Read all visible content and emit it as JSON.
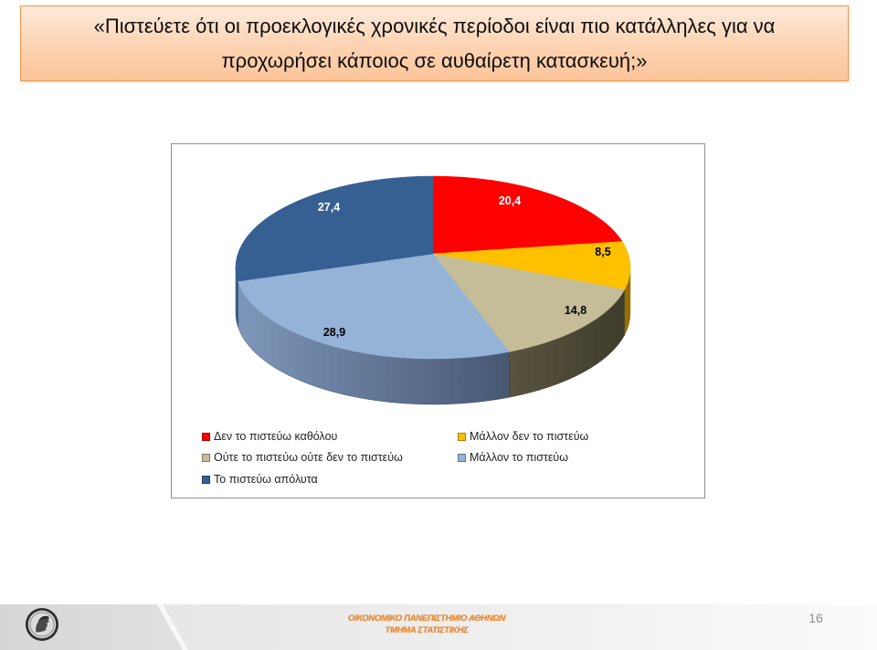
{
  "slide": {
    "title_lines": [
      "«Πιστεύετε ότι οι προεκλογικές χρονικές περίοδοι είναι πιο κατάλληλες για να",
      "προχωρήσει κάποιος σε αυθαίρετη κατασκευή;»"
    ],
    "page_number": "16"
  },
  "footer": {
    "university": "ΟΙΚΟΝΟΜΙΚΟ ΠΑΝΕΠΙΣΤΗΜΙΟ ΑΘΗΝΩΝ",
    "department": "ΤΜΗΜΑ ΣΤΑΤΙΣΤΙΚΗΣ",
    "logo_icon": "university-seal-icon"
  },
  "theme": {
    "title_background": "#fcd5b5",
    "title_border": "#f79646",
    "footer_text": "#f08425",
    "page_number": "#8c8c8c",
    "chart_border": "#8e8e8e",
    "label_colors": [
      "#ffffff",
      "#000000",
      "#000000",
      "#000000",
      "#ffffff"
    ],
    "side_shades": [
      [
        "#b00000",
        "#7a0000"
      ],
      [
        "#e0a800",
        "#946f00"
      ],
      [
        "#958e6c",
        "#3e3b2b"
      ],
      [
        "#7e97ba",
        "#2f3b53"
      ],
      [
        "#3d5f8c",
        "#1e3350"
      ]
    ]
  },
  "chart_data": {
    "type": "pie",
    "style": "3d",
    "categories": [
      "Δεν το πιστεύω καθόλου",
      "Μάλλον δεν το πιστεύω",
      "Ούτε το πιστεύω ούτε δεν το πιστεύω",
      "Μάλλον το πιστεύω",
      "Το πιστεύω απόλυτα"
    ],
    "values": [
      20.4,
      8.5,
      14.8,
      28.9,
      27.4
    ],
    "value_labels": [
      "20,4",
      "8,5",
      "14,8",
      "28,9",
      "27,4"
    ],
    "colors": [
      "#ff0000",
      "#ffc000",
      "#c4bd97",
      "#95b3d7",
      "#376092"
    ],
    "legend_position": "bottom"
  }
}
